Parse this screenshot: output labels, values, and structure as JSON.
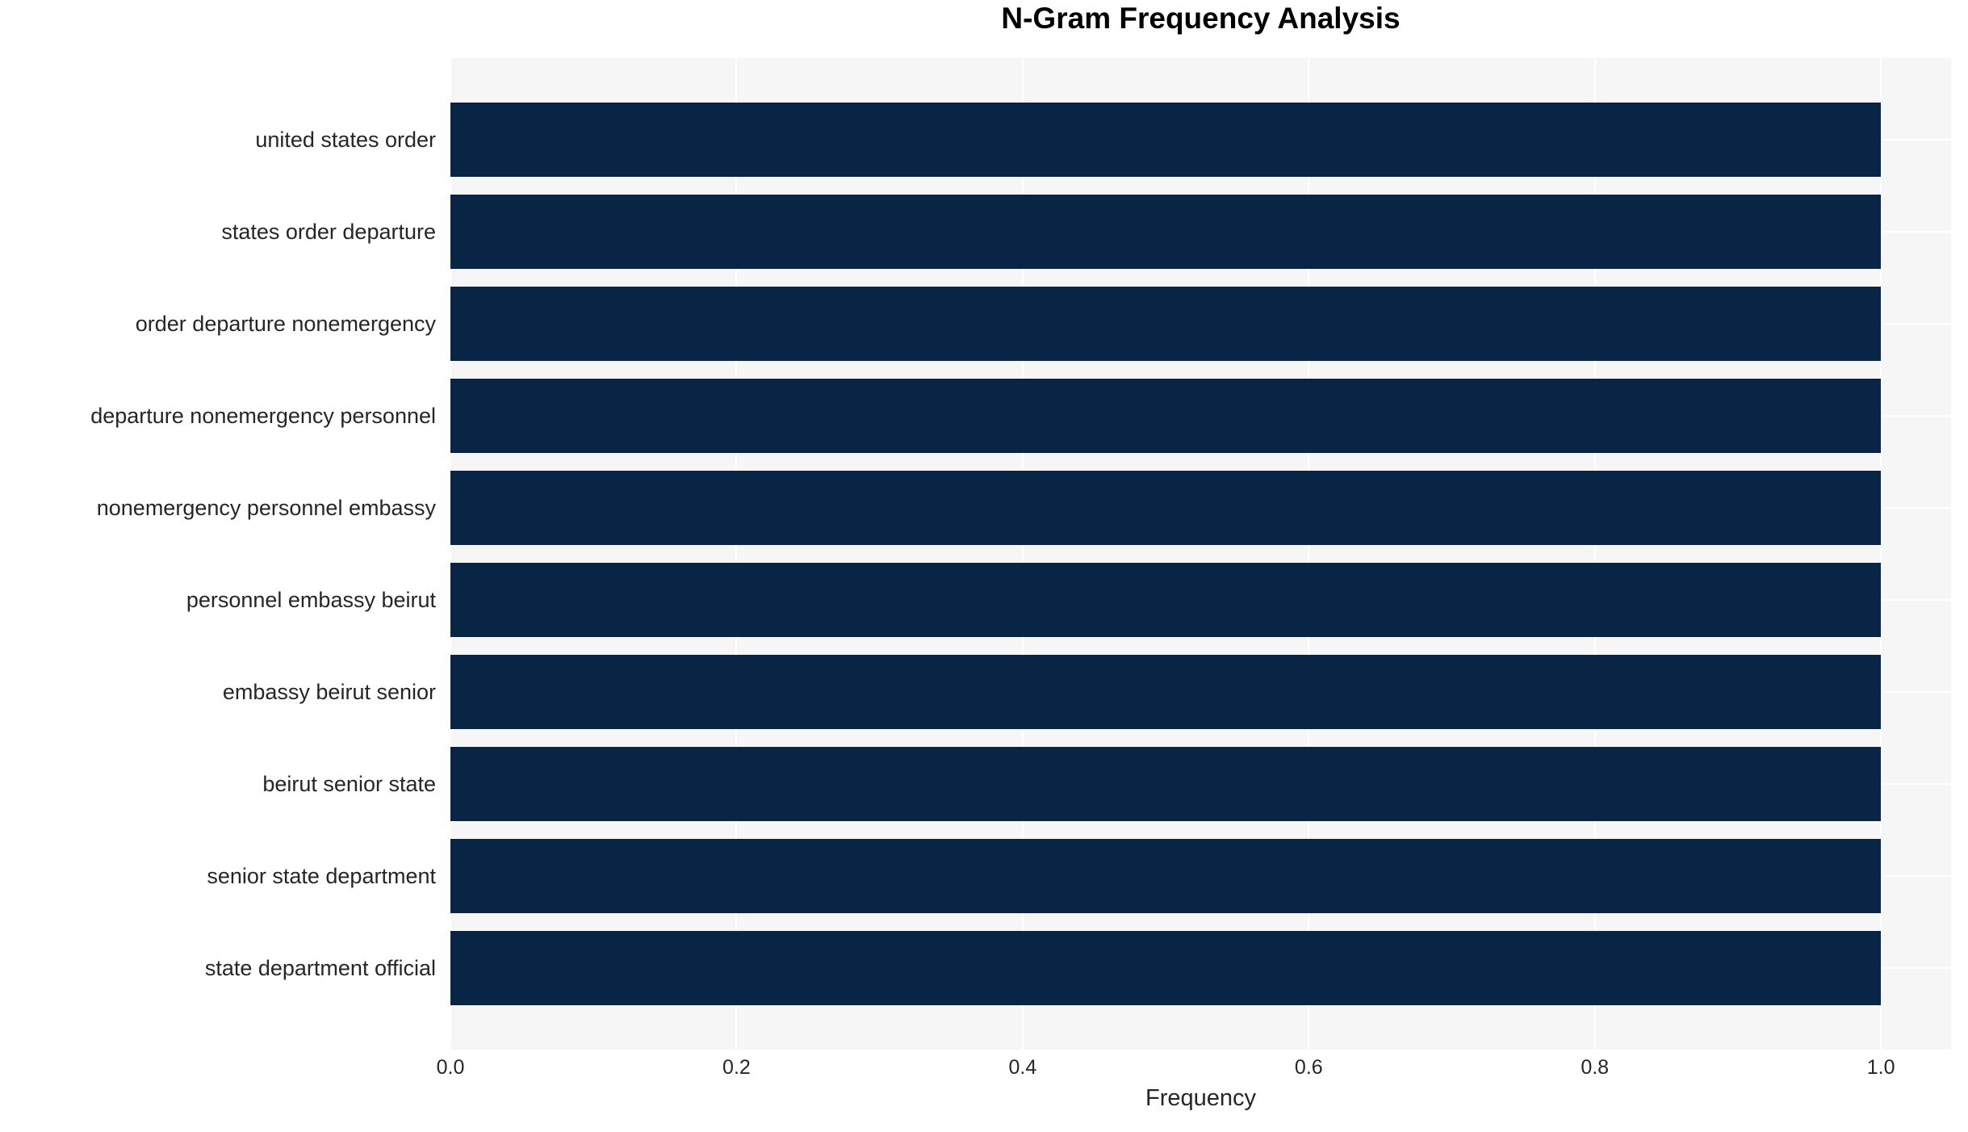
{
  "chart_data": {
    "type": "bar",
    "orientation": "horizontal",
    "title": "N-Gram Frequency Analysis",
    "xlabel": "Frequency",
    "ylabel": "",
    "categories": [
      "united states order",
      "states order departure",
      "order departure nonemergency",
      "departure nonemergency personnel",
      "nonemergency personnel embassy",
      "personnel embassy beirut",
      "embassy beirut senior",
      "beirut senior state",
      "senior state department",
      "state department official"
    ],
    "values": [
      1.0,
      1.0,
      1.0,
      1.0,
      1.0,
      1.0,
      1.0,
      1.0,
      1.0,
      1.0
    ],
    "xlim": [
      0,
      1.049
    ],
    "xticks": [
      0.0,
      0.2,
      0.4,
      0.6,
      0.8,
      1.0
    ],
    "xtick_labels": [
      "0.0",
      "0.2",
      "0.4",
      "0.6",
      "0.8",
      "1.0"
    ],
    "grid": true,
    "legend": false,
    "colors": {
      "bar": "#092545",
      "plot_background": "#f6f6f7",
      "gridline": "#ffffff",
      "text": "#262626",
      "title": "#000000"
    }
  }
}
